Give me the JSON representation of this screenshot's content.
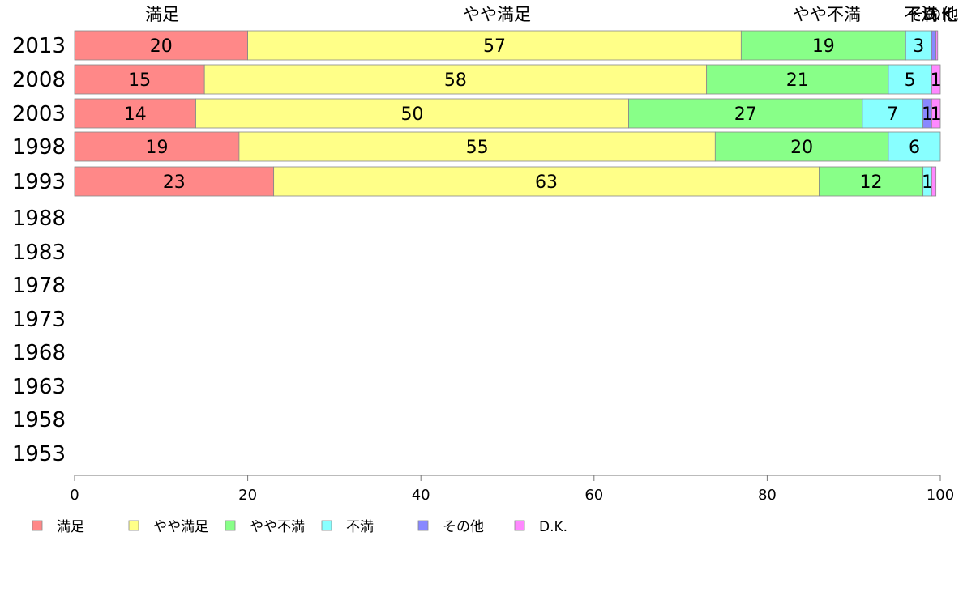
{
  "chart_data": {
    "type": "bar",
    "orientation": "horizontal",
    "stacked": true,
    "categories": [
      "2013",
      "2008",
      "2003",
      "1998",
      "1993",
      "1988",
      "1983",
      "1978",
      "1973",
      "1968",
      "1963",
      "1958",
      "1953"
    ],
    "series": [
      {
        "name": "満足",
        "color": "#ff8888",
        "values": [
          20,
          15,
          14,
          19,
          23,
          null,
          null,
          null,
          null,
          null,
          null,
          null,
          null
        ]
      },
      {
        "name": "やや満足",
        "color": "#ffff88",
        "values": [
          57,
          58,
          50,
          55,
          63,
          null,
          null,
          null,
          null,
          null,
          null,
          null,
          null
        ]
      },
      {
        "name": "やや不満",
        "color": "#88ff88",
        "values": [
          19,
          21,
          27,
          20,
          12,
          null,
          null,
          null,
          null,
          null,
          null,
          null,
          null
        ]
      },
      {
        "name": "不満",
        "color": "#88ffff",
        "values": [
          3,
          5,
          7,
          6,
          1,
          null,
          null,
          null,
          null,
          null,
          null,
          null,
          null
        ]
      },
      {
        "name": "その他",
        "color": "#8888ff",
        "values": [
          0.5,
          0,
          1,
          0,
          0,
          null,
          null,
          null,
          null,
          null,
          null,
          null,
          null
        ]
      },
      {
        "name": "D.K.",
        "color": "#ff88ff",
        "values": [
          0.2,
          1,
          1,
          0,
          0.5,
          null,
          null,
          null,
          null,
          null,
          null,
          null,
          null
        ]
      }
    ],
    "top_labels": [
      "満足",
      "やや満足",
      "やや不満",
      "不満",
      "その他",
      "D.K."
    ],
    "xlim": [
      0,
      100
    ],
    "xticks": [
      0,
      20,
      40,
      60,
      80,
      100
    ],
    "legend_position": "bottom",
    "grid": false
  }
}
